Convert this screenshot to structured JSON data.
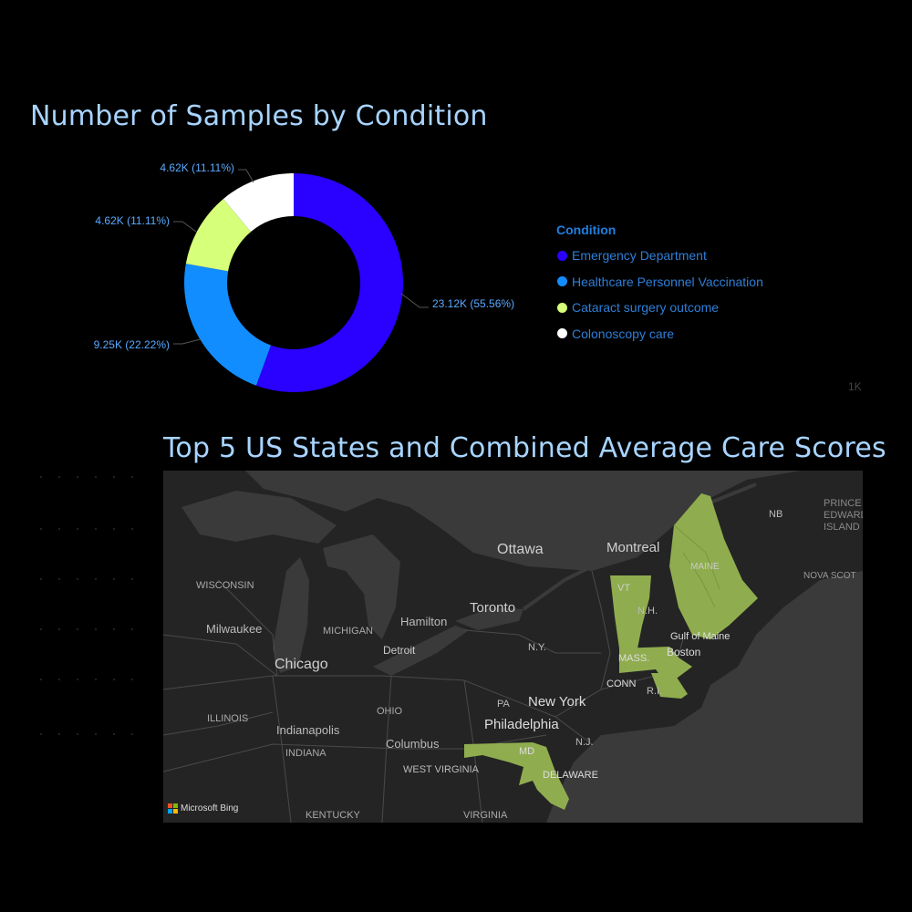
{
  "donut": {
    "title": "Number of Samples by Condition",
    "legend_title": "Condition",
    "items": [
      {
        "label": "Emergency Department",
        "value_label": "23.12K (55.56%)",
        "share": 0.5556,
        "color": "#2a00ff"
      },
      {
        "label": "Healthcare Personnel Vaccination",
        "value_label": "9.25K (22.22%)",
        "share": 0.2222,
        "color": "#118dff"
      },
      {
        "label": "Cataract surgery outcome",
        "value_label": "4.62K (11.11%)",
        "share": 0.1111,
        "color": "#d6ff7a"
      },
      {
        "label": "Colonoscopy care",
        "value_label": "4.62K (11.11%)",
        "share": 0.1111,
        "color": "#ffffff"
      }
    ],
    "faint_label": "1K"
  },
  "chart_data": {
    "type": "pie",
    "title": "Number of Samples by Condition",
    "legend_title": "Condition",
    "categories": [
      "Emergency Department",
      "Healthcare Personnel Vaccination",
      "Cataract surgery outcome",
      "Colonoscopy care"
    ],
    "values": [
      23120,
      9250,
      4620,
      4620
    ],
    "percentages": [
      55.56,
      22.22,
      11.11,
      11.11
    ],
    "legend_position": "right"
  },
  "map": {
    "title": "Top 5 US States and Combined Average Care Scores",
    "highlight_color": "#8fad4f",
    "attribution": "Microsoft Bing",
    "labels": [
      {
        "text": "NB"
      },
      {
        "text": "PRINCE"
      },
      {
        "text": "EDWARD"
      },
      {
        "text": "ISLAND"
      },
      {
        "text": "Ottawa"
      },
      {
        "text": "Montreal"
      },
      {
        "text": "MAINE"
      },
      {
        "text": "NOVA SCOT"
      },
      {
        "text": "WISCONSIN"
      },
      {
        "text": "Toronto"
      },
      {
        "text": "VT"
      },
      {
        "text": "N.H."
      },
      {
        "text": "Milwaukee"
      },
      {
        "text": "MICHIGAN"
      },
      {
        "text": "Hamilton"
      },
      {
        "text": "Gulf of Maine"
      },
      {
        "text": "Detroit"
      },
      {
        "text": "N.Y."
      },
      {
        "text": "Boston"
      },
      {
        "text": "MASS."
      },
      {
        "text": "Chicago"
      },
      {
        "text": "CONN"
      },
      {
        "text": "R.I."
      },
      {
        "text": "PA"
      },
      {
        "text": "New York"
      },
      {
        "text": "OHIO"
      },
      {
        "text": "ILLINOIS"
      },
      {
        "text": "Philadelphia"
      },
      {
        "text": "Indianapolis"
      },
      {
        "text": "Columbus"
      },
      {
        "text": "N.J."
      },
      {
        "text": "MD"
      },
      {
        "text": "INDIANA"
      },
      {
        "text": "WEST VIRGINIA"
      },
      {
        "text": "DELAWARE"
      },
      {
        "text": "KENTUCKY"
      },
      {
        "text": "VIRGINIA"
      }
    ]
  }
}
